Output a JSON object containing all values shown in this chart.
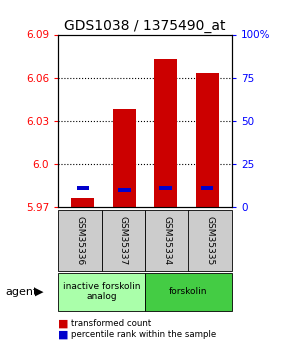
{
  "title": "GDS1038 / 1375490_at",
  "samples": [
    "GSM35336",
    "GSM35337",
    "GSM35334",
    "GSM35335"
  ],
  "bar_values": [
    5.976,
    6.038,
    6.073,
    6.063
  ],
  "bar_base": 5.97,
  "percentile_values": [
    5.983,
    5.982,
    5.983,
    5.983
  ],
  "ylim_left": [
    5.97,
    6.09
  ],
  "ylim_right": [
    0,
    100
  ],
  "yticks_left": [
    5.97,
    6.0,
    6.03,
    6.06,
    6.09
  ],
  "yticks_right": [
    0,
    25,
    50,
    75,
    100
  ],
  "ytick_labels_right": [
    "0",
    "25",
    "50",
    "75",
    "100%"
  ],
  "bar_color": "#cc0000",
  "percentile_color": "#0000cc",
  "agent_groups": [
    {
      "label": "inactive forskolin\nanalog",
      "samples": [
        0,
        1
      ],
      "color": "#aaffaa"
    },
    {
      "label": "forskolin",
      "samples": [
        2,
        3
      ],
      "color": "#44cc44"
    }
  ],
  "legend_items": [
    {
      "color": "#cc0000",
      "label": "transformed count"
    },
    {
      "color": "#0000cc",
      "label": "percentile rank within the sample"
    }
  ],
  "agent_label": "agent",
  "background_color": "#ffffff",
  "sample_box_color": "#cccccc",
  "title_fontsize": 10,
  "tick_fontsize": 7.5,
  "bar_width": 0.55
}
